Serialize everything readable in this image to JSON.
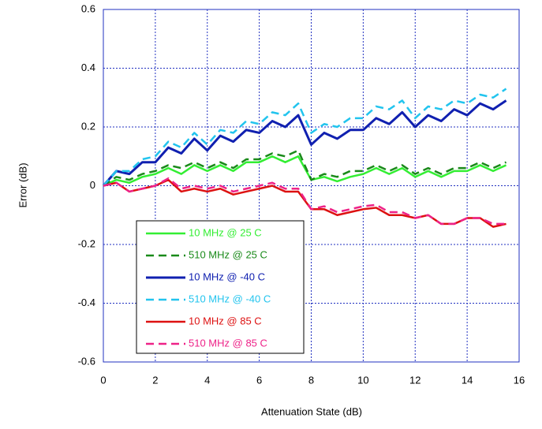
{
  "chart_data": {
    "type": "line",
    "x_label": "Attenuation State (dB)",
    "y_label": "Error (dB)",
    "x": [
      0,
      0.5,
      1,
      1.5,
      2,
      2.5,
      3,
      3.5,
      4,
      4.5,
      5,
      5.5,
      6,
      6.5,
      7,
      7.5,
      8,
      8.5,
      9,
      9.5,
      10,
      10.5,
      11,
      11.5,
      12,
      12.5,
      13,
      13.5,
      14,
      14.5,
      15,
      15.5
    ],
    "series": [
      {
        "name": "10 MHz @ 25 C",
        "color": "#33ee33",
        "dash": false,
        "values": [
          0,
          0.02,
          0.01,
          0.03,
          0.04,
          0.06,
          0.04,
          0.07,
          0.05,
          0.07,
          0.05,
          0.08,
          0.08,
          0.1,
          0.08,
          0.1,
          0.02,
          0.03,
          0.015,
          0.03,
          0.04,
          0.06,
          0.04,
          0.06,
          0.03,
          0.05,
          0.03,
          0.05,
          0.05,
          0.07,
          0.05,
          0.07
        ]
      },
      {
        "name": "510 MHz @ 25 C",
        "color": "#1a8a1a",
        "dash": true,
        "values": [
          0,
          0.03,
          0.02,
          0.04,
          0.05,
          0.07,
          0.06,
          0.08,
          0.06,
          0.08,
          0.06,
          0.09,
          0.09,
          0.11,
          0.1,
          0.12,
          0.02,
          0.04,
          0.03,
          0.05,
          0.05,
          0.07,
          0.05,
          0.07,
          0.04,
          0.06,
          0.04,
          0.06,
          0.06,
          0.08,
          0.06,
          0.08
        ]
      },
      {
        "name": "10 MHz @ -40 C",
        "color": "#1020b0",
        "dash": false,
        "values": [
          0,
          0.05,
          0.04,
          0.08,
          0.08,
          0.13,
          0.11,
          0.16,
          0.12,
          0.17,
          0.15,
          0.19,
          0.18,
          0.22,
          0.2,
          0.24,
          0.14,
          0.18,
          0.16,
          0.19,
          0.19,
          0.23,
          0.21,
          0.25,
          0.2,
          0.24,
          0.22,
          0.26,
          0.24,
          0.28,
          0.26,
          0.29
        ]
      },
      {
        "name": "510 MHz @ -40 C",
        "color": "#22c4ee",
        "dash": true,
        "values": [
          0,
          0.05,
          0.05,
          0.09,
          0.1,
          0.15,
          0.13,
          0.18,
          0.14,
          0.19,
          0.18,
          0.22,
          0.21,
          0.25,
          0.24,
          0.28,
          0.18,
          0.21,
          0.2,
          0.23,
          0.23,
          0.27,
          0.26,
          0.29,
          0.23,
          0.27,
          0.26,
          0.29,
          0.28,
          0.31,
          0.3,
          0.33
        ]
      },
      {
        "name": "10 MHz @ 85 C",
        "color": "#dd1111",
        "dash": false,
        "values": [
          0,
          0.01,
          -0.02,
          -0.01,
          0.0,
          0.02,
          -0.02,
          -0.01,
          -0.02,
          -0.01,
          -0.03,
          -0.02,
          -0.01,
          0.0,
          -0.02,
          -0.02,
          -0.08,
          -0.08,
          -0.1,
          -0.09,
          -0.08,
          -0.075,
          -0.1,
          -0.1,
          -0.11,
          -0.1,
          -0.13,
          -0.13,
          -0.11,
          -0.11,
          -0.14,
          -0.13
        ]
      },
      {
        "name": "510 MHz @ 85 C",
        "color": "#ee2288",
        "dash": true,
        "values": [
          0,
          0.01,
          -0.02,
          -0.01,
          0.0,
          0.025,
          -0.01,
          0.0,
          -0.01,
          0.0,
          -0.02,
          -0.01,
          0.0,
          0.01,
          -0.01,
          -0.01,
          -0.08,
          -0.07,
          -0.09,
          -0.08,
          -0.07,
          -0.065,
          -0.09,
          -0.09,
          -0.11,
          -0.1,
          -0.13,
          -0.13,
          -0.11,
          -0.11,
          -0.13,
          -0.13
        ]
      }
    ],
    "xlim": [
      0,
      16
    ],
    "xticks": [
      0,
      2,
      4,
      6,
      8,
      10,
      12,
      14,
      16
    ],
    "ylim": [
      -0.6,
      0.6
    ],
    "yticks": [
      -0.6,
      -0.4,
      -0.2,
      0,
      0.2,
      0.4,
      0.6
    ],
    "grid": true,
    "legend": "lower left"
  }
}
